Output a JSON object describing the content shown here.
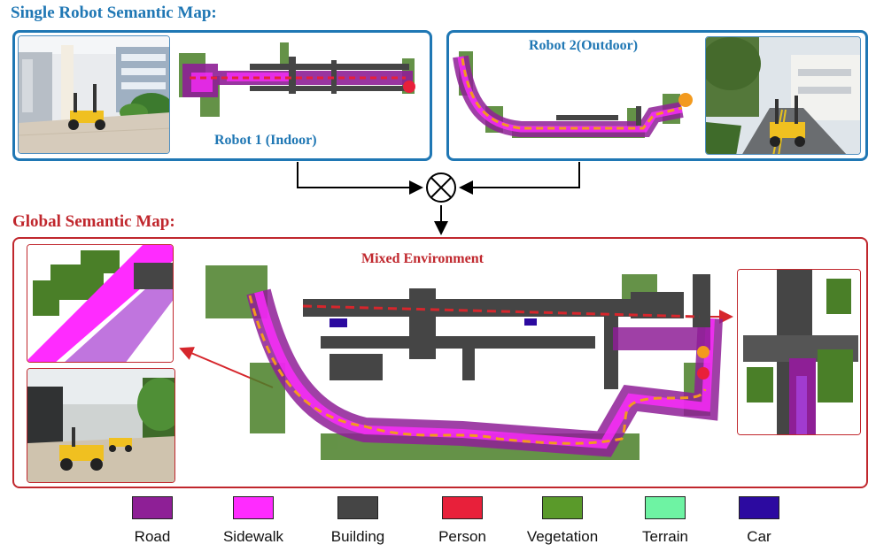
{
  "single_map": {
    "title": "Single Robot Semantic Map:",
    "robot1_label": "Robot 1 (Indoor)",
    "robot2_label": "Robot 2(Outdoor)"
  },
  "global_map": {
    "title": "Global Semantic Map:",
    "environment_label": "Mixed Environment"
  },
  "colors": {
    "title_blue": "#1f77b4",
    "title_red": "#c0272d"
  },
  "legend": [
    {
      "label": "Road",
      "color": "#8e1f96"
    },
    {
      "label": "Sidewalk",
      "color": "#ff2bff"
    },
    {
      "label": "Building",
      "color": "#454545"
    },
    {
      "label": "Person",
      "color": "#e8203a"
    },
    {
      "label": "Vegetation",
      "color": "#5a9a2a"
    },
    {
      "label": "Terrain",
      "color": "#6ef3a3"
    },
    {
      "label": "Car",
      "color": "#2c0aa0"
    }
  ]
}
